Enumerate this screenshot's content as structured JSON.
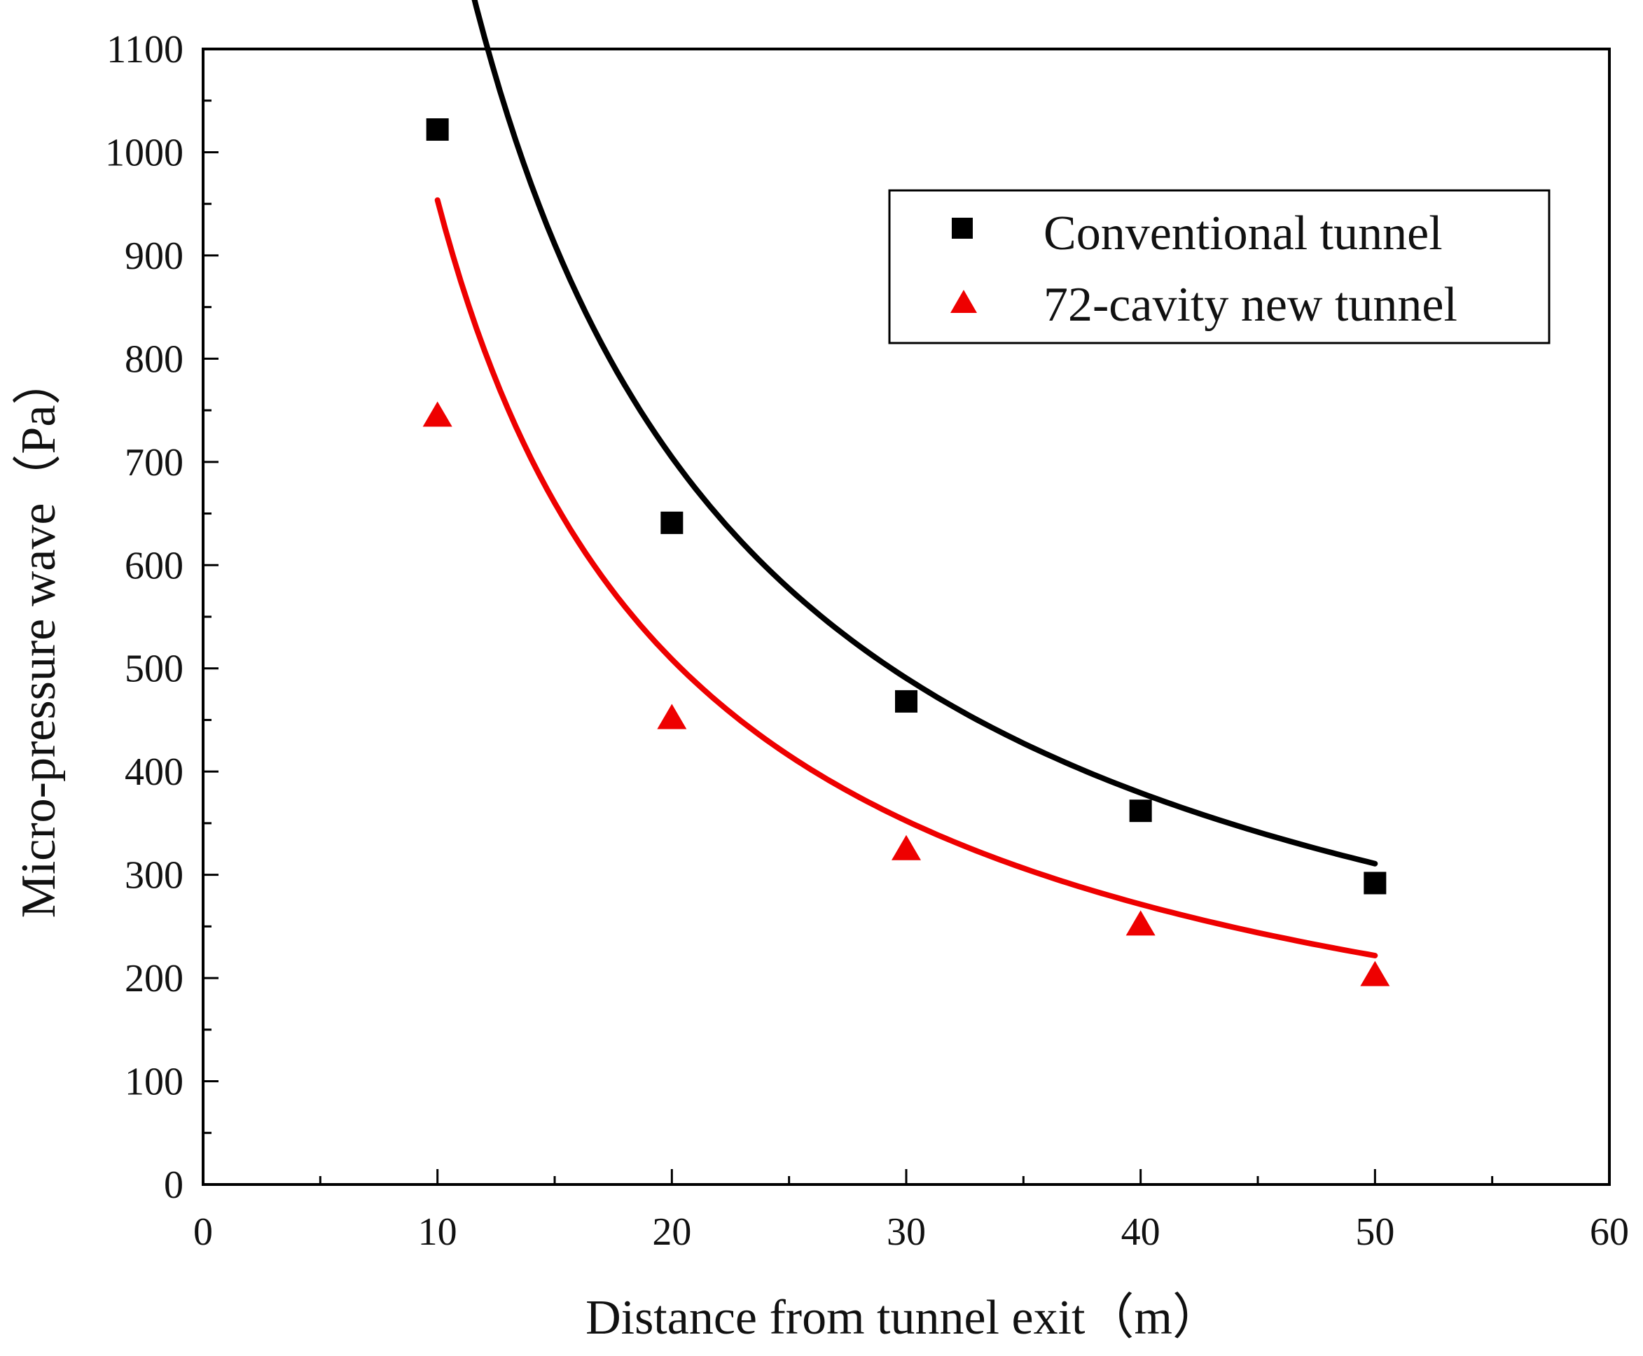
{
  "chart_data": {
    "type": "scatter",
    "title": "",
    "xlabel": "Distance from tunnel exit（m）",
    "ylabel": "Micro-pressure wave（Pa）",
    "xlim": [
      0,
      60
    ],
    "ylim": [
      0,
      1100
    ],
    "x_major_ticks": [
      0,
      10,
      20,
      30,
      40,
      50,
      60
    ],
    "x_tick_labels": [
      "0",
      "10",
      "20",
      "30",
      "40",
      "50",
      "60"
    ],
    "y_major_ticks": [
      0,
      100,
      200,
      300,
      400,
      500,
      600,
      700,
      800,
      900,
      1000,
      1100
    ],
    "y_tick_labels": [
      "0",
      "100",
      "200",
      "300",
      "400",
      "500",
      "600",
      "700",
      "800",
      "900",
      "1000",
      "1100"
    ],
    "grid": false,
    "legend_position": "top-right",
    "series": [
      {
        "name": "Conventional tunnel",
        "marker": "square",
        "color": "#000000",
        "x": [
          10,
          20,
          30,
          40,
          50
        ],
        "y": [
          1022,
          641,
          468,
          362,
          292
        ],
        "fit": {
          "model": "power",
          "a": 10226,
          "b": -0.893
        }
      },
      {
        "name": "72-cavity new tunnel",
        "marker": "triangle",
        "color": "#ee0000",
        "x": [
          10,
          20,
          30,
          40,
          50
        ],
        "y": [
          745,
          452,
          325,
          252,
          203
        ],
        "fit": {
          "model": "power",
          "a": 7685,
          "b": -0.9063
        }
      }
    ]
  }
}
